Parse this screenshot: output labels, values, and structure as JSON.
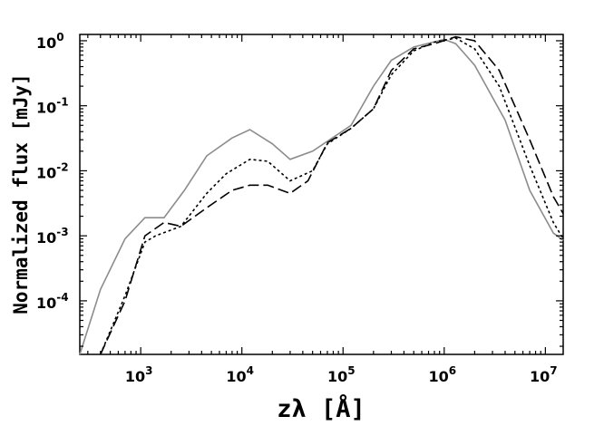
{
  "chart_data": {
    "type": "line",
    "title": "",
    "xlabel": "zλ [Å]",
    "ylabel": "Normalized flux [mJy]",
    "x_scale": "log",
    "y_scale": "log",
    "xlim": [
      250,
      15000000
    ],
    "ylim": [
      1.5e-05,
      1.25
    ],
    "grid": false,
    "legend": "none",
    "x_ticks": [
      {
        "value": 1000,
        "base": "10",
        "exp": "3"
      },
      {
        "value": 10000,
        "base": "10",
        "exp": "4"
      },
      {
        "value": 100000,
        "base": "10",
        "exp": "5"
      },
      {
        "value": 1000000,
        "base": "10",
        "exp": "6"
      },
      {
        "value": 10000000,
        "base": "10",
        "exp": "7"
      }
    ],
    "y_ticks": [
      {
        "value": 0.0001,
        "base": "10",
        "exp": "-4"
      },
      {
        "value": 0.001,
        "base": "10",
        "exp": "-3"
      },
      {
        "value": 0.01,
        "base": "10",
        "exp": "-2"
      },
      {
        "value": 0.1,
        "base": "10",
        "exp": "-1"
      },
      {
        "value": 1,
        "base": "10",
        "exp": "0"
      }
    ],
    "series": [
      {
        "color": "#8c8c8c",
        "style": "solid",
        "points": [
          [
            250,
            1.5e-05
          ],
          [
            400,
            0.00015
          ],
          [
            700,
            0.0009
          ],
          [
            1100,
            0.0019
          ],
          [
            1700,
            0.0019
          ],
          [
            2700,
            0.005
          ],
          [
            4500,
            0.017
          ],
          [
            8000,
            0.032
          ],
          [
            12000,
            0.043
          ],
          [
            20000,
            0.026
          ],
          [
            30000,
            0.015
          ],
          [
            50000,
            0.02
          ],
          [
            120000,
            0.05
          ],
          [
            200000,
            0.2
          ],
          [
            300000,
            0.5
          ],
          [
            500000,
            0.8
          ],
          [
            1000000,
            1.05
          ],
          [
            1300000,
            0.9
          ],
          [
            2000000,
            0.42
          ],
          [
            4000000,
            0.06
          ],
          [
            7000000,
            0.005
          ],
          [
            12000000,
            0.0011
          ],
          [
            15000000,
            0.00085
          ]
        ]
      },
      {
        "color": "#000000",
        "style": "dotted",
        "points": [
          [
            400,
            1.5e-05
          ],
          [
            700,
            0.00012
          ],
          [
            1100,
            0.0008
          ],
          [
            1400,
            0.001
          ],
          [
            2500,
            0.0014
          ],
          [
            4500,
            0.0045
          ],
          [
            7000,
            0.009
          ],
          [
            12000,
            0.015
          ],
          [
            18000,
            0.014
          ],
          [
            30000,
            0.007
          ],
          [
            50000,
            0.01
          ],
          [
            70000,
            0.026
          ],
          [
            120000,
            0.045
          ],
          [
            200000,
            0.09
          ],
          [
            300000,
            0.3
          ],
          [
            500000,
            0.7
          ],
          [
            800000,
            0.95
          ],
          [
            1300000,
            1.1
          ],
          [
            2000000,
            0.75
          ],
          [
            3500000,
            0.2
          ],
          [
            7000000,
            0.012
          ],
          [
            12000000,
            0.0016
          ],
          [
            15000000,
            0.0009
          ]
        ]
      },
      {
        "color": "#000000",
        "style": "dashed",
        "points": [
          [
            400,
            1.5e-05
          ],
          [
            700,
            0.0001
          ],
          [
            1100,
            0.001
          ],
          [
            1700,
            0.0016
          ],
          [
            2500,
            0.0014
          ],
          [
            4500,
            0.0027
          ],
          [
            8000,
            0.005
          ],
          [
            12000,
            0.006
          ],
          [
            18000,
            0.006
          ],
          [
            30000,
            0.0045
          ],
          [
            45000,
            0.007
          ],
          [
            70000,
            0.027
          ],
          [
            120000,
            0.045
          ],
          [
            200000,
            0.09
          ],
          [
            300000,
            0.35
          ],
          [
            500000,
            0.75
          ],
          [
            800000,
            0.9
          ],
          [
            1300000,
            1.15
          ],
          [
            2000000,
            1.0
          ],
          [
            3500000,
            0.35
          ],
          [
            7000000,
            0.03
          ],
          [
            12000000,
            0.004
          ],
          [
            15000000,
            0.0022
          ]
        ]
      }
    ]
  }
}
